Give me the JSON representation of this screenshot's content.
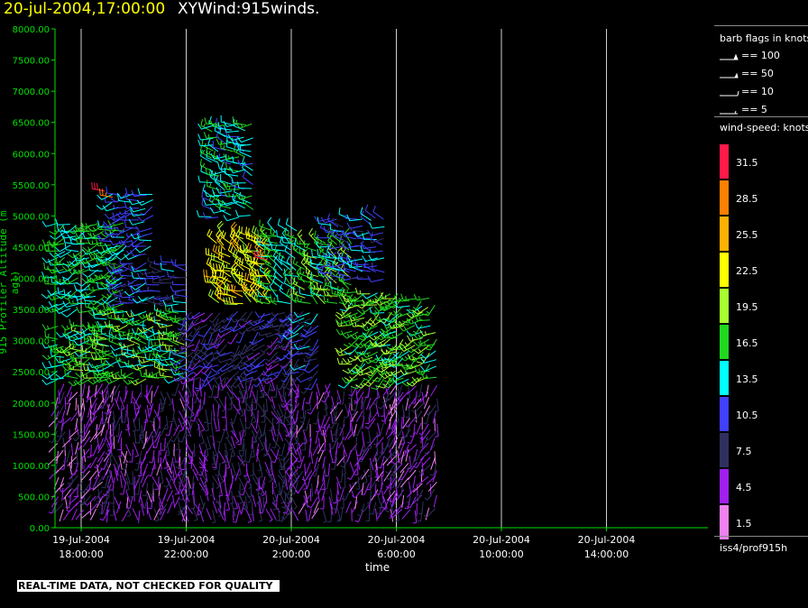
{
  "header": {
    "date_time": "20-jul-2004,17:00:00",
    "plot_name": "XYWind:915winds."
  },
  "footer_note": "REAL-TIME DATA, NOT CHECKED FOR QUALITY",
  "legend": {
    "barb_title": "barb flags in knots",
    "barbs": [
      {
        "icon": "barb-100-icon",
        "label": "== 100"
      },
      {
        "icon": "barb-50-icon",
        "label": "== 50"
      },
      {
        "icon": "barb-10-icon",
        "label": "== 10"
      },
      {
        "icon": "barb-5-icon",
        "label": "== 5"
      }
    ],
    "speed_title": "wind-speed: knots",
    "speeds": [
      {
        "label": "31.5",
        "color": "#ff1a4a"
      },
      {
        "label": "28.5",
        "color": "#ff8000"
      },
      {
        "label": "25.5",
        "color": "#ffb000"
      },
      {
        "label": "22.5",
        "color": "#ffff00"
      },
      {
        "label": "19.5",
        "color": "#a8ff30"
      },
      {
        "label": "16.5",
        "color": "#20d820"
      },
      {
        "label": "13.5",
        "color": "#00ffff"
      },
      {
        "label": "10.5",
        "color": "#4040ff"
      },
      {
        "label": "7.5",
        "color": "#303060"
      },
      {
        "label": "4.5",
        "color": "#a020f0"
      },
      {
        "label": "1.5",
        "color": "#ee82ee"
      }
    ],
    "station": "iss4/prof915h"
  },
  "chart_data": {
    "type": "scatter",
    "description_type": "wind barb time-height plot",
    "ylabel": "915 Profiler Altitude (m agl)",
    "xlabel": "time",
    "ylim": [
      0,
      8000
    ],
    "yticks": [
      "0.00",
      "500.00",
      "1000.00",
      "1500.00",
      "2000.00",
      "2500.00",
      "3000.00",
      "3500.00",
      "4000.00",
      "4500.00",
      "5000.00",
      "5500.00",
      "6000.00",
      "6500.00",
      "7000.00",
      "7500.00",
      "8000.00"
    ],
    "xticks": [
      {
        "date": "19-Jul-2004",
        "time": "18:00:00"
      },
      {
        "date": "19-Jul-2004",
        "time": "22:00:00"
      },
      {
        "date": "20-Jul-2004",
        "time": "2:00:00"
      },
      {
        "date": "20-Jul-2004",
        "time": "6:00:00"
      },
      {
        "date": "20-Jul-2004",
        "time": "10:00:00"
      },
      {
        "date": "20-Jul-2004",
        "time": "14:00:00"
      }
    ],
    "xlim_hours_from_first_tick": [
      -1,
      13.5
    ],
    "grid": "vertical lines at x ticks",
    "regions": [
      {
        "t": [
          -0.9,
          1.3
        ],
        "z": [
          300,
          2300
        ],
        "speed": 4,
        "dir": 200
      },
      {
        "t": [
          -0.9,
          1.3
        ],
        "z": [
          2400,
          3300
        ],
        "speed": 16,
        "dir": 260
      },
      {
        "t": [
          -0.9,
          1.6
        ],
        "z": [
          3500,
          4900
        ],
        "speed": 15,
        "dir": 250
      },
      {
        "t": [
          1.0,
          4.0
        ],
        "z": [
          300,
          2300
        ],
        "speed": 5,
        "dir": 180
      },
      {
        "t": [
          1.0,
          4.0
        ],
        "z": [
          2400,
          3500
        ],
        "speed": 16,
        "dir": 270
      },
      {
        "t": [
          1.5,
          4.0
        ],
        "z": [
          3600,
          4300
        ],
        "speed": 10,
        "dir": 265
      },
      {
        "t": [
          1.2,
          2.7
        ],
        "z": [
          4400,
          5400
        ],
        "speed": 12,
        "dir": 250
      },
      {
        "t": [
          4.0,
          8.0
        ],
        "z": [
          300,
          2400
        ],
        "speed": 6,
        "dir": 170
      },
      {
        "t": [
          4.0,
          8.0
        ],
        "z": [
          2400,
          3500
        ],
        "speed": 8,
        "dir": 230
      },
      {
        "t": [
          5.2,
          7.2
        ],
        "z": [
          3600,
          4700
        ],
        "speed": 22,
        "dir": 300
      },
      {
        "t": [
          7.2,
          8.3
        ],
        "z": [
          3600,
          4800
        ],
        "speed": 15,
        "dir": 300
      },
      {
        "t": [
          8.0,
          12.0
        ],
        "z": [
          300,
          2300
        ],
        "speed": 5,
        "dir": 190
      },
      {
        "t": [
          8.0,
          9.2
        ],
        "z": [
          2400,
          3500
        ],
        "speed": 10,
        "dir": 230
      },
      {
        "t": [
          8.5,
          10.3
        ],
        "z": [
          3600,
          4600
        ],
        "speed": 17,
        "dir": 300
      },
      {
        "t": [
          10.3,
          12.2
        ],
        "z": [
          2400,
          3800
        ],
        "speed": 17,
        "dir": 240
      },
      {
        "t": [
          12.0,
          13.5
        ],
        "z": [
          300,
          2300
        ],
        "speed": 5,
        "dir": 200
      },
      {
        "t": [
          12.0,
          13.5
        ],
        "z": [
          2400,
          3700
        ],
        "speed": 17,
        "dir": 240
      },
      {
        "t": [
          9.5,
          11.5
        ],
        "z": [
          4000,
          5000
        ],
        "speed": 11,
        "dir": 280
      },
      {
        "t": [
          5.0,
          6.6
        ],
        "z": [
          5000,
          6500
        ],
        "speed": 14,
        "dir": 280
      }
    ]
  }
}
